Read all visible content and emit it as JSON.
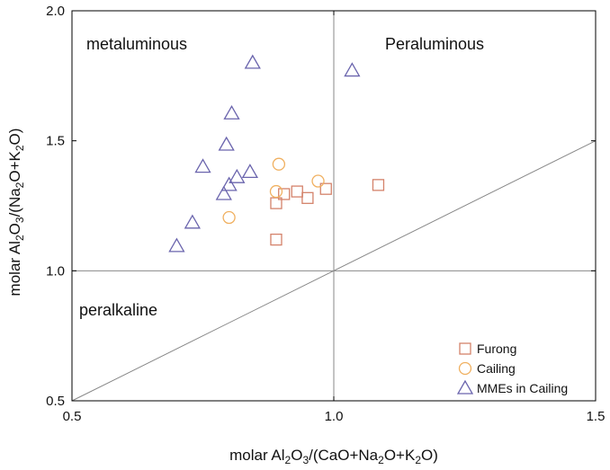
{
  "chart_data": {
    "type": "scatter",
    "xlabel": "molar Al2O3/(CaO+Na2O+K2O)",
    "ylabel": "molar Al2O3/(Na2O+K2O)",
    "xlim": [
      0.5,
      1.5
    ],
    "ylim": [
      0.5,
      2.0
    ],
    "x_ticks": [
      "0.5",
      "1.0",
      "1.5"
    ],
    "y_ticks": [
      "0.5",
      "1.0",
      "1.5",
      "2.0"
    ],
    "grid": false,
    "legend_position": "bottom-right",
    "reference_lines": [
      {
        "type": "vertical",
        "x": 1.0
      },
      {
        "type": "horizontal",
        "y": 1.0
      },
      {
        "type": "line",
        "from": [
          0.5,
          0.5
        ],
        "to": [
          1.5,
          1.5
        ]
      }
    ],
    "annotations": [
      "metaluminous",
      "Peraluminous",
      "peralkaline"
    ],
    "series": [
      {
        "name": "Furong",
        "marker": "square",
        "color": "#d4826a",
        "points": [
          [
            0.89,
            1.12
          ],
          [
            0.89,
            1.26
          ],
          [
            0.905,
            1.295
          ],
          [
            0.93,
            1.305
          ],
          [
            0.95,
            1.28
          ],
          [
            0.985,
            1.315
          ],
          [
            1.085,
            1.33
          ]
        ]
      },
      {
        "name": "Cailing",
        "marker": "circle",
        "color": "#f0b060",
        "points": [
          [
            0.8,
            1.205
          ],
          [
            0.89,
            1.305
          ],
          [
            0.895,
            1.41
          ],
          [
            0.97,
            1.345
          ]
        ]
      },
      {
        "name": "MMEs in Cailing",
        "marker": "triangle",
        "color": "#6a64ad",
        "points": [
          [
            0.7,
            1.095
          ],
          [
            0.73,
            1.185
          ],
          [
            0.75,
            1.4
          ],
          [
            0.79,
            1.295
          ],
          [
            0.8,
            1.33
          ],
          [
            0.815,
            1.36
          ],
          [
            0.84,
            1.38
          ],
          [
            0.795,
            1.485
          ],
          [
            0.805,
            1.605
          ],
          [
            0.845,
            1.8
          ],
          [
            1.035,
            1.77
          ]
        ]
      }
    ]
  }
}
